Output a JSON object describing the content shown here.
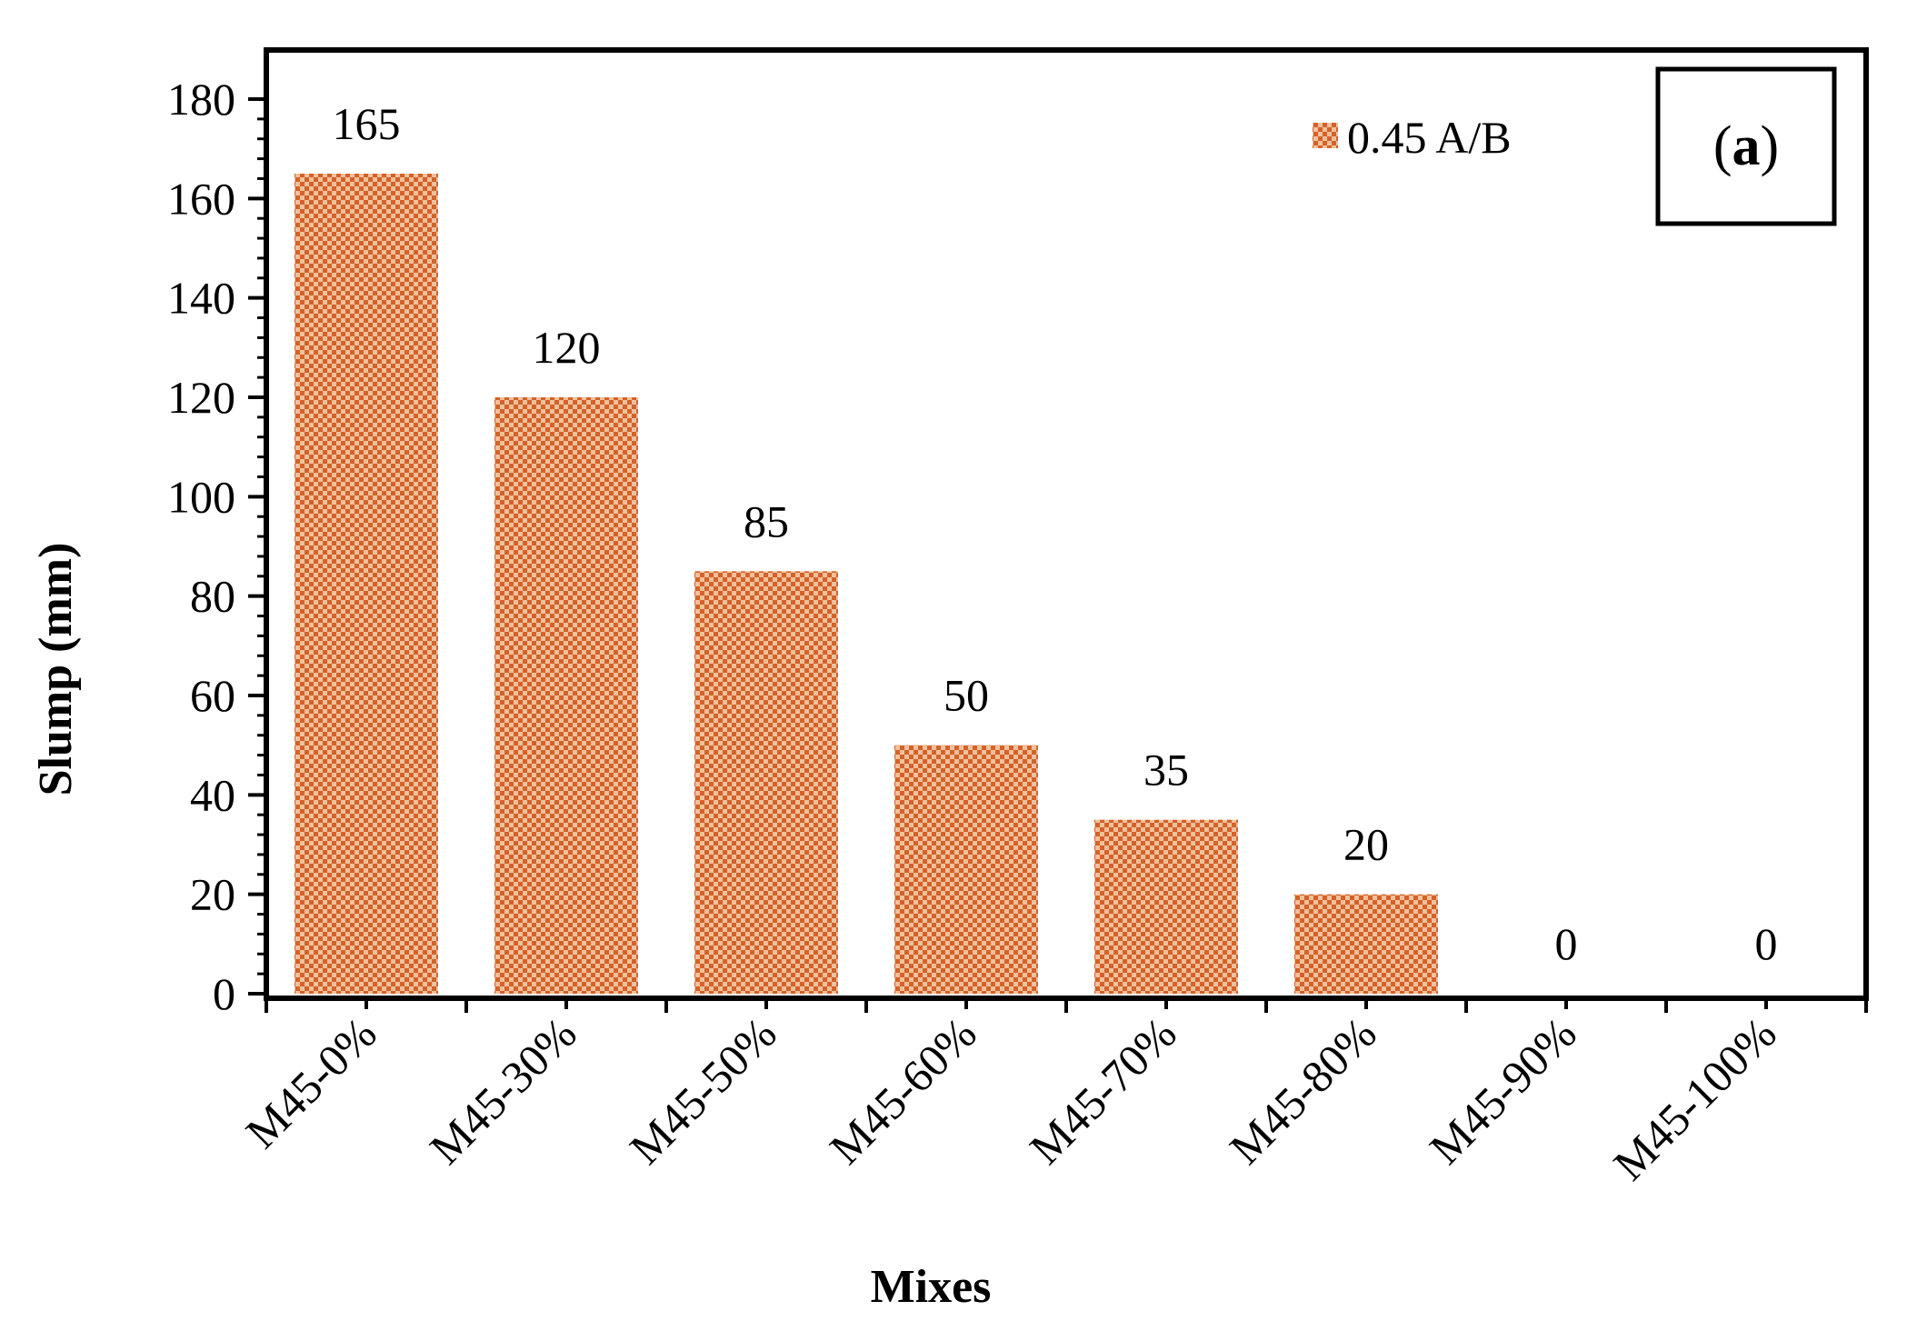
{
  "chart_data": {
    "type": "bar",
    "categories": [
      "M45-0%",
      "M45-30%",
      "M45-50%",
      "M45-60%",
      "M45-70%",
      "M45-80%",
      "M45-90%",
      "M45-100%"
    ],
    "series": [
      {
        "name": "0.45 A/B",
        "values": [
          165,
          120,
          85,
          50,
          35,
          20,
          0,
          0
        ]
      }
    ],
    "data_labels": [
      "165",
      "120",
      "85",
      "50",
      "35",
      "20",
      "0",
      "0"
    ],
    "xlabel": "Mixes",
    "ylabel": "Slump (mm)",
    "ylim": [
      0,
      180
    ],
    "y_ticks": [
      0,
      20,
      40,
      60,
      80,
      100,
      120,
      140,
      160,
      180
    ],
    "y_tick_labels": [
      "0",
      "20",
      "40",
      "60",
      "80",
      "100",
      "120",
      "140",
      "160",
      "180"
    ],
    "grid": false,
    "legend_position": "top-right",
    "panel_label": {
      "open": "(",
      "letter": "a",
      "close": ")"
    },
    "colors": {
      "bar_fill": "#f2c09a",
      "bar_pattern": "#d4622a",
      "axis": "#000000"
    }
  }
}
